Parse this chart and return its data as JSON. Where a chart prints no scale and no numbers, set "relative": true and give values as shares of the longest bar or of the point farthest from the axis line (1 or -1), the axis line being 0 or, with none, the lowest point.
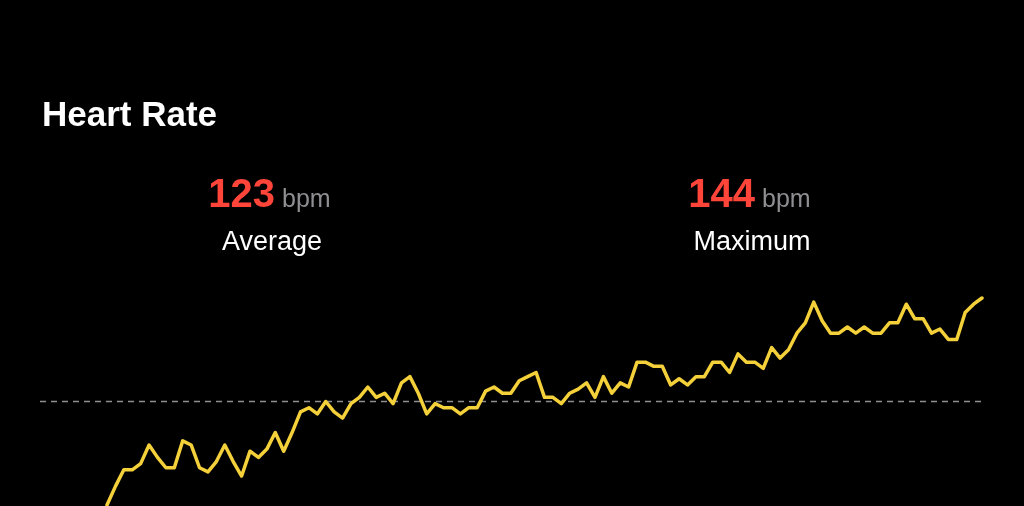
{
  "chart_data": {
    "type": "line",
    "title": "Heart Rate",
    "relative": true,
    "annotations": [
      "123",
      "bpm",
      "Average",
      "144",
      "bpm",
      "Maximum"
    ],
    "categories": [
      null,
      null,
      null,
      null,
      null,
      null,
      null,
      null,
      null,
      null,
      null,
      null,
      null,
      null,
      null,
      null,
      null,
      null,
      null,
      null,
      null,
      null,
      null,
      null,
      null,
      null,
      null,
      null,
      null,
      null,
      null,
      null,
      null,
      null,
      null,
      null,
      null,
      null,
      null,
      null,
      null,
      null,
      null,
      null,
      null,
      null,
      null,
      null,
      null,
      null,
      null,
      null,
      null,
      null,
      null,
      null,
      null,
      null,
      null,
      null,
      null,
      null,
      null,
      null,
      null,
      null,
      null,
      null,
      null,
      null,
      null,
      null,
      null,
      null,
      null,
      null,
      null,
      null,
      null,
      null,
      null,
      null,
      null,
      null,
      null,
      null,
      null,
      null,
      null,
      null,
      null,
      null,
      null,
      null,
      null,
      null,
      null,
      null,
      null,
      null,
      null,
      null,
      null,
      null,
      null
    ],
    "series": [
      {
        "color": "#f4d03a",
        "values": [
          0.0,
          0.09,
          0.17,
          0.17,
          0.2,
          0.29,
          0.23,
          0.18,
          0.18,
          0.31,
          0.29,
          0.18,
          0.16,
          0.21,
          0.29,
          0.21,
          0.14,
          0.26,
          0.23,
          0.27,
          0.35,
          0.26,
          0.35,
          0.45,
          0.47,
          0.44,
          0.5,
          0.45,
          0.42,
          0.49,
          0.52,
          0.57,
          0.52,
          0.54,
          0.49,
          0.59,
          0.62,
          0.54,
          0.44,
          0.49,
          0.47,
          0.47,
          0.44,
          0.47,
          0.47,
          0.55,
          0.57,
          0.54,
          0.54,
          0.6,
          0.62,
          0.64,
          0.52,
          0.52,
          0.49,
          0.54,
          0.56,
          0.59,
          0.52,
          0.62,
          0.54,
          0.59,
          0.57,
          0.69,
          0.69,
          0.67,
          0.67,
          0.58,
          0.61,
          0.58,
          0.62,
          0.62,
          0.69,
          0.69,
          0.64,
          0.73,
          0.69,
          0.69,
          0.66,
          0.76,
          0.71,
          0.75,
          0.83,
          0.88,
          0.98,
          0.89,
          0.83,
          0.83,
          0.86,
          0.83,
          0.86,
          0.83,
          0.83,
          0.88,
          0.88,
          0.97,
          0.9,
          0.9,
          0.83,
          0.85,
          0.8,
          0.8,
          0.93,
          0.97,
          1.0
        ]
      }
    ],
    "line_style": "solid",
    "marker": "none",
    "ref_lines": [
      {
        "axis": "y",
        "value": 0.5,
        "color": "#8e8e93",
        "line_style": "dashed"
      }
    ]
  }
}
